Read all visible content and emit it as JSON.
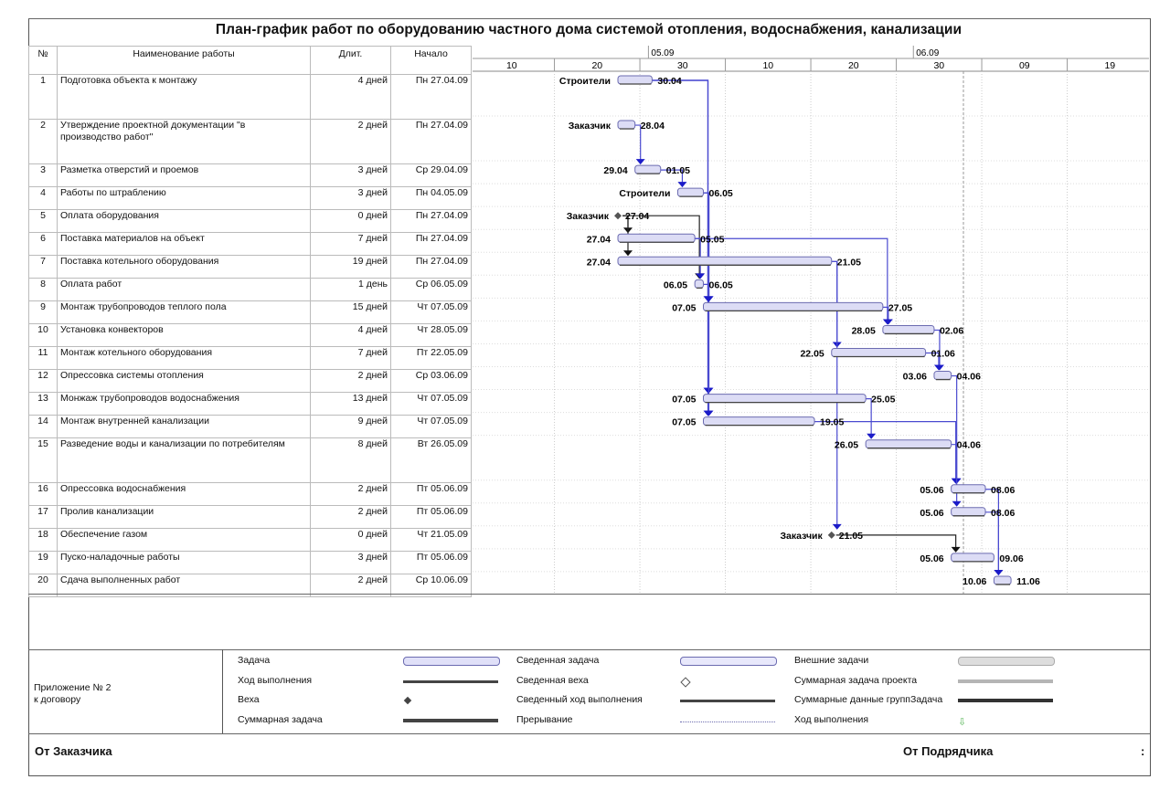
{
  "title": "План-график работ по оборудованию  частного дома системой отопления, водоснабжения, канализации",
  "table": {
    "headers": {
      "num": "№",
      "name": "Наименование работы",
      "duration": "Длит.",
      "start": "Начало"
    },
    "rows": [
      {
        "num": "1",
        "name": "Подготовка объекта к монтажу",
        "duration": "4 дней",
        "start": "Пн 27.04.09"
      },
      {
        "num": "2",
        "name": "Утверждение проектной документации \"в производство работ\"",
        "duration": "2 дней",
        "start": "Пн 27.04.09"
      },
      {
        "num": "3",
        "name": "Разметка отверстий и проемов",
        "duration": "3 дней",
        "start": "Ср 29.04.09"
      },
      {
        "num": "4",
        "name": "Работы по штраблению",
        "duration": "3 дней",
        "start": "Пн 04.05.09"
      },
      {
        "num": "5",
        "name": "Оплата оборудования",
        "duration": "0 дней",
        "start": "Пн 27.04.09"
      },
      {
        "num": "6",
        "name": "Поставка материалов на объект",
        "duration": "7 дней",
        "start": "Пн 27.04.09"
      },
      {
        "num": "7",
        "name": "Поставка котельного оборудования",
        "duration": "19 дней",
        "start": "Пн 27.04.09"
      },
      {
        "num": "8",
        "name": "Оплата работ",
        "duration": "1 день",
        "start": "Ср 06.05.09"
      },
      {
        "num": "9",
        "name": "Монтаж трубопроводов теплого пола",
        "duration": "15 дней",
        "start": "Чт 07.05.09"
      },
      {
        "num": "10",
        "name": "Установка конвекторов",
        "duration": "4 дней",
        "start": "Чт 28.05.09"
      },
      {
        "num": "11",
        "name": "Монтаж котельного оборудования",
        "duration": "7 дней",
        "start": "Пт 22.05.09"
      },
      {
        "num": "12",
        "name": "Опрессовка системы отопления",
        "duration": "2 дней",
        "start": "Ср 03.06.09"
      },
      {
        "num": "13",
        "name": "Монжаж трубопроводов водоснабжения",
        "duration": "13 дней",
        "start": "Чт 07.05.09"
      },
      {
        "num": "14",
        "name": "Монтаж внутренней канализации",
        "duration": "9 дней",
        "start": "Чт 07.05.09"
      },
      {
        "num": "15",
        "name": "Разведение  воды и канализации по потребителям",
        "duration": "8 дней",
        "start": "Вт 26.05.09"
      },
      {
        "num": "16",
        "name": "Опрессовка водоснабжения",
        "duration": "2 дней",
        "start": "Пт 05.06.09"
      },
      {
        "num": "17",
        "name": "Пролив канализации",
        "duration": "2 дней",
        "start": "Пт 05.06.09"
      },
      {
        "num": "18",
        "name": "Обеспечение  газом",
        "duration": "0 дней",
        "start": "Чт 21.05.09"
      },
      {
        "num": "19",
        "name": "Пуско-наладочные работы",
        "duration": "3 дней",
        "start": "Пт 05.06.09"
      },
      {
        "num": "20",
        "name": "Сдача выполненных работ",
        "duration": "2 дней",
        "start": "Ср 10.06.09"
      }
    ]
  },
  "chart_data": {
    "type": "gantt",
    "title": "План-график работ по оборудованию  частного дома системой отопления, водоснабжения, канализации",
    "day_zero": "27.04.09",
    "timescale": {
      "months": [
        {
          "label": "05.09",
          "day": 4
        },
        {
          "label": "06.09",
          "day": 35
        }
      ],
      "ticks": [
        {
          "label": "10",
          "day": -17
        },
        {
          "label": "20",
          "day": -7
        },
        {
          "label": "30",
          "day": 3
        },
        {
          "label": "10",
          "day": 13
        },
        {
          "label": "20",
          "day": 23
        },
        {
          "label": "30",
          "day": 33
        },
        {
          "label": "09",
          "day": 43
        },
        {
          "label": "19",
          "day": 53
        }
      ],
      "range_days": [
        -17,
        62
      ]
    },
    "tasks": [
      {
        "id": 1,
        "type": "task",
        "start": 0,
        "end": 4,
        "left_label": "Строители",
        "right_label": "30.04"
      },
      {
        "id": 2,
        "type": "task",
        "start": 0,
        "end": 2,
        "left_label": "Заказчик",
        "right_label": "28.04"
      },
      {
        "id": 3,
        "type": "task",
        "start": 2,
        "end": 5,
        "left_label": "29.04",
        "right_label": "01.05"
      },
      {
        "id": 4,
        "type": "task",
        "start": 7,
        "end": 10,
        "left_label": "Строители",
        "right_label": "06.05"
      },
      {
        "id": 5,
        "type": "milestone",
        "start": 0,
        "end": 0,
        "left_label": "Заказчик",
        "right_label": "27.04"
      },
      {
        "id": 6,
        "type": "task",
        "start": 0,
        "end": 9,
        "left_label": "27.04",
        "right_label": "05.05"
      },
      {
        "id": 7,
        "type": "task",
        "start": 0,
        "end": 25,
        "left_label": "27.04",
        "right_label": "21.05"
      },
      {
        "id": 8,
        "type": "task",
        "start": 9,
        "end": 10,
        "left_label": "06.05",
        "right_label": "06.05"
      },
      {
        "id": 9,
        "type": "task",
        "start": 10,
        "end": 31,
        "left_label": "07.05",
        "right_label": "27.05"
      },
      {
        "id": 10,
        "type": "task",
        "start": 31,
        "end": 37,
        "left_label": "28.05",
        "right_label": "02.06"
      },
      {
        "id": 11,
        "type": "task",
        "start": 25,
        "end": 36,
        "left_label": "22.05",
        "right_label": "01.06"
      },
      {
        "id": 12,
        "type": "task",
        "start": 37,
        "end": 39,
        "left_label": "03.06",
        "right_label": "04.06"
      },
      {
        "id": 13,
        "type": "task",
        "start": 10,
        "end": 29,
        "left_label": "07.05",
        "right_label": "25.05"
      },
      {
        "id": 14,
        "type": "task",
        "start": 10,
        "end": 23,
        "left_label": "07.05",
        "right_label": "19.05"
      },
      {
        "id": 15,
        "type": "task",
        "start": 29,
        "end": 39,
        "left_label": "26.05",
        "right_label": "04.06"
      },
      {
        "id": 16,
        "type": "task",
        "start": 39,
        "end": 43,
        "left_label": "05.06",
        "right_label": "08.06"
      },
      {
        "id": 17,
        "type": "task",
        "start": 39,
        "end": 43,
        "left_label": "05.06",
        "right_label": "08.06"
      },
      {
        "id": 18,
        "type": "milestone",
        "start": 25,
        "end": 25,
        "left_label": "Заказчик",
        "right_label": "21.05"
      },
      {
        "id": 19,
        "type": "task",
        "start": 39,
        "end": 44,
        "left_label": "05.06",
        "right_label": "09.06"
      },
      {
        "id": 20,
        "type": "task",
        "start": 44,
        "end": 46,
        "left_label": "10.06",
        "right_label": "11.06"
      }
    ],
    "links": [
      {
        "from": 1,
        "to": 9
      },
      {
        "from": 1,
        "to": 13
      },
      {
        "from": 1,
        "to": 14
      },
      {
        "from": 2,
        "to": 3
      },
      {
        "from": 3,
        "to": 4
      },
      {
        "from": 4,
        "to": 9
      },
      {
        "from": 4,
        "to": 13
      },
      {
        "from": 4,
        "to": 14
      },
      {
        "from": 5,
        "to": 6,
        "color": "black"
      },
      {
        "from": 5,
        "to": 7,
        "color": "black"
      },
      {
        "from": 5,
        "to": 8,
        "color": "black"
      },
      {
        "from": 6,
        "to": 8
      },
      {
        "from": 6,
        "to": 10
      },
      {
        "from": 7,
        "to": 11
      },
      {
        "from": 8,
        "to": 9
      },
      {
        "from": 9,
        "to": 10
      },
      {
        "from": 10,
        "to": 12
      },
      {
        "from": 11,
        "to": 12
      },
      {
        "from": 12,
        "to": 16
      },
      {
        "from": 13,
        "to": 15
      },
      {
        "from": 14,
        "to": 16
      },
      {
        "from": 15,
        "to": 17
      },
      {
        "from": 16,
        "to": 20
      },
      {
        "from": 17,
        "to": 20
      },
      {
        "from": 18,
        "to": 19,
        "color": "black"
      },
      {
        "from": 7,
        "to": 18
      }
    ],
    "status_date_day": 40
  },
  "legend": {
    "appendix_line1": "Приложение № 2",
    "appendix_line2": "к договору",
    "items": [
      {
        "label": "Задача",
        "symbol": "task-bar"
      },
      {
        "label": "Ход выполнения",
        "symbol": "progress-line"
      },
      {
        "label": "Веха",
        "symbol": "milestone-diamond"
      },
      {
        "label": "Суммарная задача",
        "symbol": "summary-bar"
      },
      {
        "label": "Сведенная задача",
        "symbol": "rolled-up-task"
      },
      {
        "label": "Сведенная веха",
        "symbol": "rolled-up-milestone"
      },
      {
        "label": "Сведенный ход выполнения",
        "symbol": "rolled-up-progress"
      },
      {
        "label": "Прерывание",
        "symbol": "split-dots"
      },
      {
        "label": "Внешние задачи",
        "symbol": "external-task"
      },
      {
        "label": "Суммарная задача проекта",
        "symbol": "project-summary"
      },
      {
        "label": "Суммарные данные группЗадача",
        "symbol": "group-summary"
      },
      {
        "label": "Ход выполнения",
        "symbol": "deadline-arrow"
      }
    ]
  },
  "signatures": {
    "customer": "От Заказчика",
    "contractor": "От Подрядчика",
    "colon": ":"
  },
  "colors": {
    "bar_fill": "#dcdcf5",
    "bar_border": "#6b6bb0",
    "link": "#4a4ad0",
    "arrow": "#1b1bc8",
    "milestone": "#555555"
  }
}
